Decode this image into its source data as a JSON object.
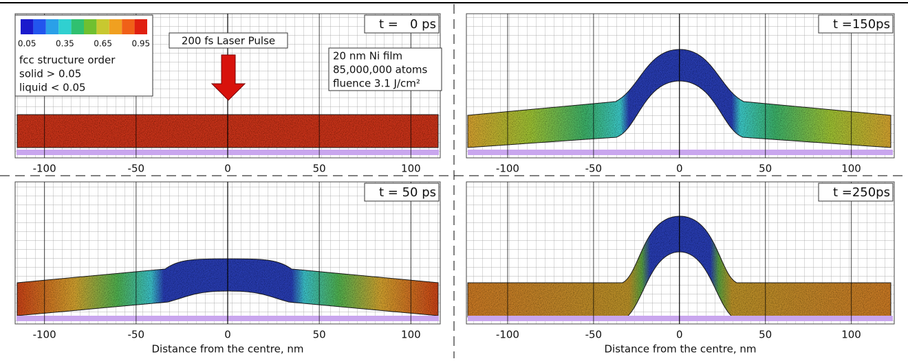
{
  "colorbar": {
    "ticks": [
      0.05,
      0.35,
      0.65,
      0.95
    ],
    "colors": [
      "#1a1acc",
      "#2255ee",
      "#2aa0e8",
      "#30d0d0",
      "#30c070",
      "#70c030",
      "#c8c830",
      "#f0a020",
      "#f06018",
      "#e02010"
    ]
  },
  "legend_text": [
    "fcc structure order",
    "solid  > 0.05",
    "liquid < 0.05"
  ],
  "laser_label": "200 fs Laser Pulse",
  "film_info": [
    "20 nm Ni film",
    "85,000,000 atoms",
    "fluence 3.1 J/cm²"
  ],
  "panels": [
    {
      "time": "t =   0 ps",
      "xlim": [
        -116,
        116
      ],
      "xticks": [
        -100,
        -50,
        0,
        50,
        100
      ]
    },
    {
      "time": "t =150ps",
      "xlim": [
        -124,
        125
      ],
      "xticks": [
        -100,
        -50,
        0,
        50,
        100
      ]
    },
    {
      "time": "t = 50 ps",
      "xlim": [
        -116,
        116
      ],
      "xticks": [
        -100,
        -50,
        0,
        50,
        100
      ],
      "xlabel": "Distance from the centre, nm"
    },
    {
      "time": "t =250ps",
      "xlim": [
        -124,
        125
      ],
      "xticks": [
        -100,
        -50,
        0,
        50,
        100
      ],
      "xlabel": "Distance from the centre, nm"
    }
  ]
}
